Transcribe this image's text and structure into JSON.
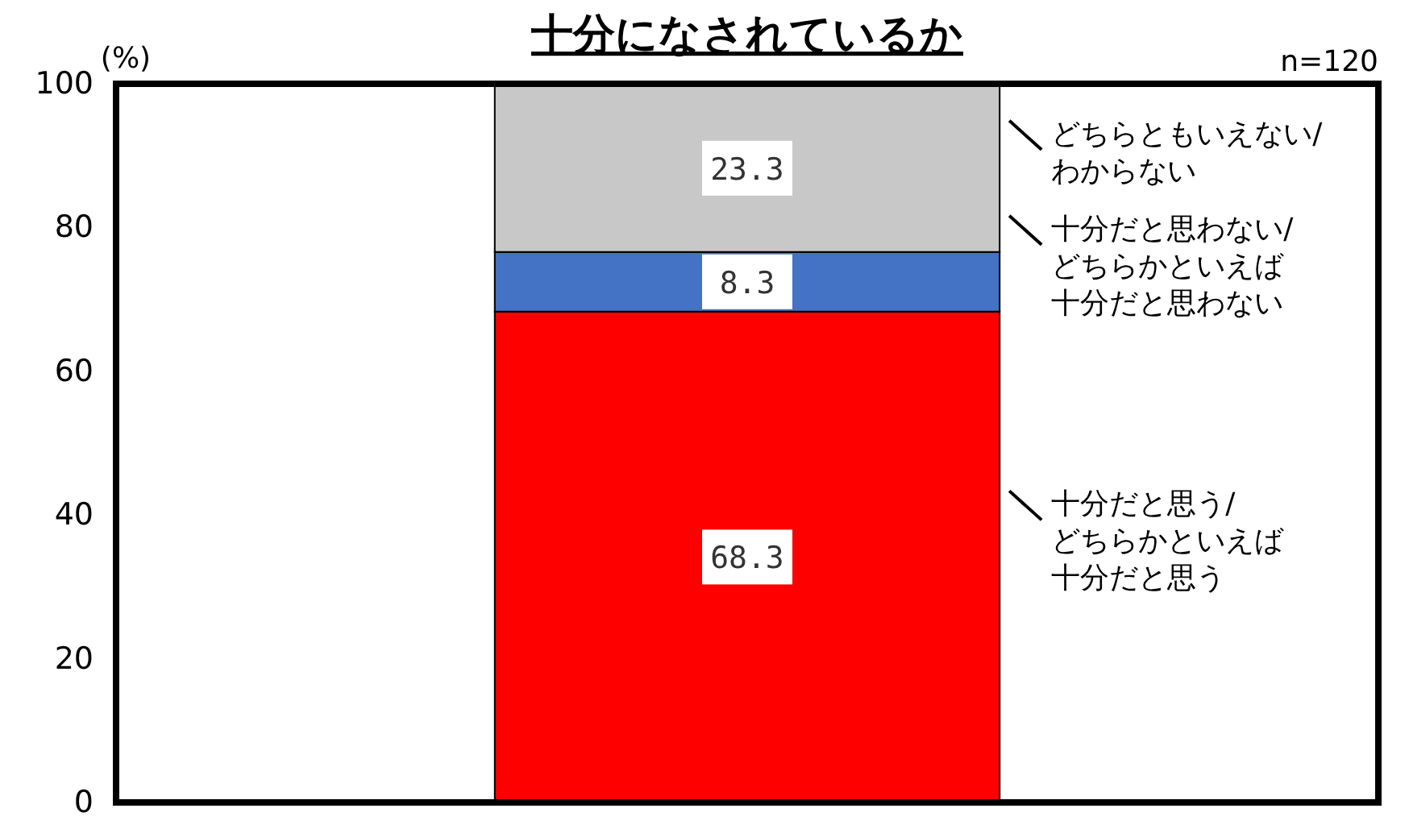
{
  "chart_data": {
    "type": "bar",
    "stacked": true,
    "title": "十分になされているか",
    "ylabel": "(%)",
    "annotations": [
      "n=120"
    ],
    "categories": [
      null
    ],
    "ylim": [
      0,
      100
    ],
    "yticks": [
      0,
      20,
      40,
      60,
      80,
      100
    ],
    "data_labels": true,
    "legend": "right",
    "series": [
      {
        "name": "十分だと思う/どちらかといえば十分だと思う",
        "color": "#ff0000",
        "values": [
          68.3
        ]
      },
      {
        "name": "十分だと思わない/どちらかといえば十分だと思わない",
        "color": "#4472c4",
        "values": [
          8.3
        ]
      },
      {
        "name": "どちらともいえない/わからない",
        "color": "#c8c8c8",
        "values": [
          23.3
        ]
      }
    ]
  }
}
